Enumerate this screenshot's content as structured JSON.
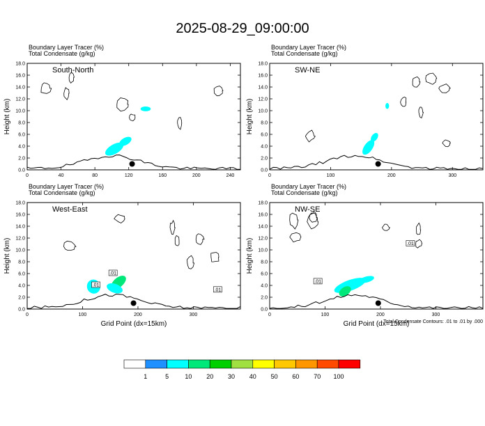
{
  "title": "2025-08-29_09:00:00",
  "chart_data": [
    {
      "type": "heatmap",
      "panel_label": "South-North",
      "header_line1": "Boundary Layer Tracer   (%)",
      "header_line2": "Total Condensate   (g/kg)",
      "ylabel": "Height (km)",
      "xlabel": "",
      "xlim": [
        0,
        252
      ],
      "ylim": [
        0,
        18
      ],
      "xticks": [
        0,
        40,
        80,
        120,
        160,
        200,
        240
      ],
      "yticks": [
        0,
        2,
        4,
        6,
        8,
        10,
        12,
        14,
        16,
        18
      ],
      "tracer_blobs": [
        {
          "x": 103,
          "y": 3.5,
          "level": 5,
          "rx": 12,
          "ry": 0.8,
          "rot": -30
        },
        {
          "x": 116,
          "y": 4.8,
          "level": 5,
          "rx": 8,
          "ry": 0.6,
          "rot": -30
        },
        {
          "x": 140,
          "y": 10.3,
          "level": 5,
          "rx": 6,
          "ry": 0.4,
          "rot": 0
        }
      ],
      "marker": {
        "x": 124,
        "y": 1.0
      }
    },
    {
      "type": "heatmap",
      "panel_label": "SW-NE",
      "header_line1": "Boundary Layer Tracer   (%)",
      "header_line2": "Total Condensate   (g/kg)",
      "ylabel": "Height (km)",
      "xlabel": "",
      "xlim": [
        0,
        350
      ],
      "ylim": [
        0,
        18
      ],
      "xticks": [
        0,
        100,
        200,
        300
      ],
      "yticks": [
        0,
        2,
        4,
        6,
        8,
        10,
        12,
        14,
        16,
        18
      ],
      "tracer_blobs": [
        {
          "x": 162,
          "y": 3.8,
          "level": 5,
          "rx": 14,
          "ry": 0.7,
          "rot": -55
        },
        {
          "x": 172,
          "y": 5.5,
          "level": 5,
          "rx": 8,
          "ry": 0.5,
          "rot": -55
        },
        {
          "x": 193,
          "y": 10.8,
          "level": 5,
          "rx": 3,
          "ry": 0.5,
          "rot": 0
        }
      ],
      "marker": {
        "x": 178,
        "y": 1.0
      }
    },
    {
      "type": "heatmap",
      "panel_label": "West-East",
      "header_line1": "Boundary Layer Tracer   (%)",
      "header_line2": "Total Condensate   (g/kg)",
      "ylabel": "Height (km)",
      "xlabel": "Grid Point (dx=15km)",
      "xlim": [
        0,
        385
      ],
      "ylim": [
        0,
        18
      ],
      "xticks": [
        0,
        100,
        200,
        300
      ],
      "yticks": [
        0,
        2,
        4,
        6,
        8,
        10,
        12,
        14,
        16,
        18
      ],
      "tracer_blobs": [
        {
          "x": 120,
          "y": 3.8,
          "level": 5,
          "rx": 12,
          "ry": 1.2,
          "rot": -20
        },
        {
          "x": 165,
          "y": 4.5,
          "level": 10,
          "rx": 16,
          "ry": 0.8,
          "rot": -40
        },
        {
          "x": 158,
          "y": 3.5,
          "level": 5,
          "rx": 8,
          "ry": 1.4,
          "rot": -70
        }
      ],
      "contour_labels": [
        {
          "x": 124,
          "y": 4.0,
          "text": ".01"
        },
        {
          "x": 155,
          "y": 6.0,
          "text": ".01"
        },
        {
          "x": 344,
          "y": 3.2,
          "text": ".01"
        }
      ],
      "marker": {
        "x": 192,
        "y": 1.0
      }
    },
    {
      "type": "heatmap",
      "panel_label": "NW-SE",
      "header_line1": "Boundary Layer Tracer   (%)",
      "header_line2": "Total Condensate   (g/kg)",
      "ylabel": "Height (km)",
      "xlabel": "Grid Point (dx=15km)",
      "xlim": [
        0,
        385
      ],
      "ylim": [
        0,
        18
      ],
      "xticks": [
        0,
        100,
        200,
        300
      ],
      "yticks": [
        0,
        2,
        4,
        6,
        8,
        10,
        12,
        14,
        16,
        18
      ],
      "tracer_blobs": [
        {
          "x": 145,
          "y": 4.0,
          "level": 5,
          "rx": 30,
          "ry": 0.9,
          "rot": -20
        },
        {
          "x": 136,
          "y": 3.0,
          "level": 10,
          "rx": 12,
          "ry": 0.7,
          "rot": -35
        },
        {
          "x": 175,
          "y": 5.0,
          "level": 5,
          "rx": 14,
          "ry": 0.5,
          "rot": -15
        }
      ],
      "contour_labels": [
        {
          "x": 87,
          "y": 4.6,
          "text": ".01"
        },
        {
          "x": 254,
          "y": 11.0,
          "text": ".01"
        }
      ],
      "marker": {
        "x": 196,
        "y": 1.0
      },
      "note": "Total Condensate Contours: .01 to .01 by .000"
    }
  ],
  "colorbar": {
    "levels": [
      "1",
      "5",
      "10",
      "20",
      "30",
      "40",
      "50",
      "60",
      "70",
      "100"
    ],
    "colors": [
      "#ffffff",
      "#1e90ff",
      "#00ffff",
      "#00e87a",
      "#00d000",
      "#a0e040",
      "#ffff00",
      "#ffc800",
      "#ff9600",
      "#ff4a00",
      "#ff0000"
    ]
  }
}
